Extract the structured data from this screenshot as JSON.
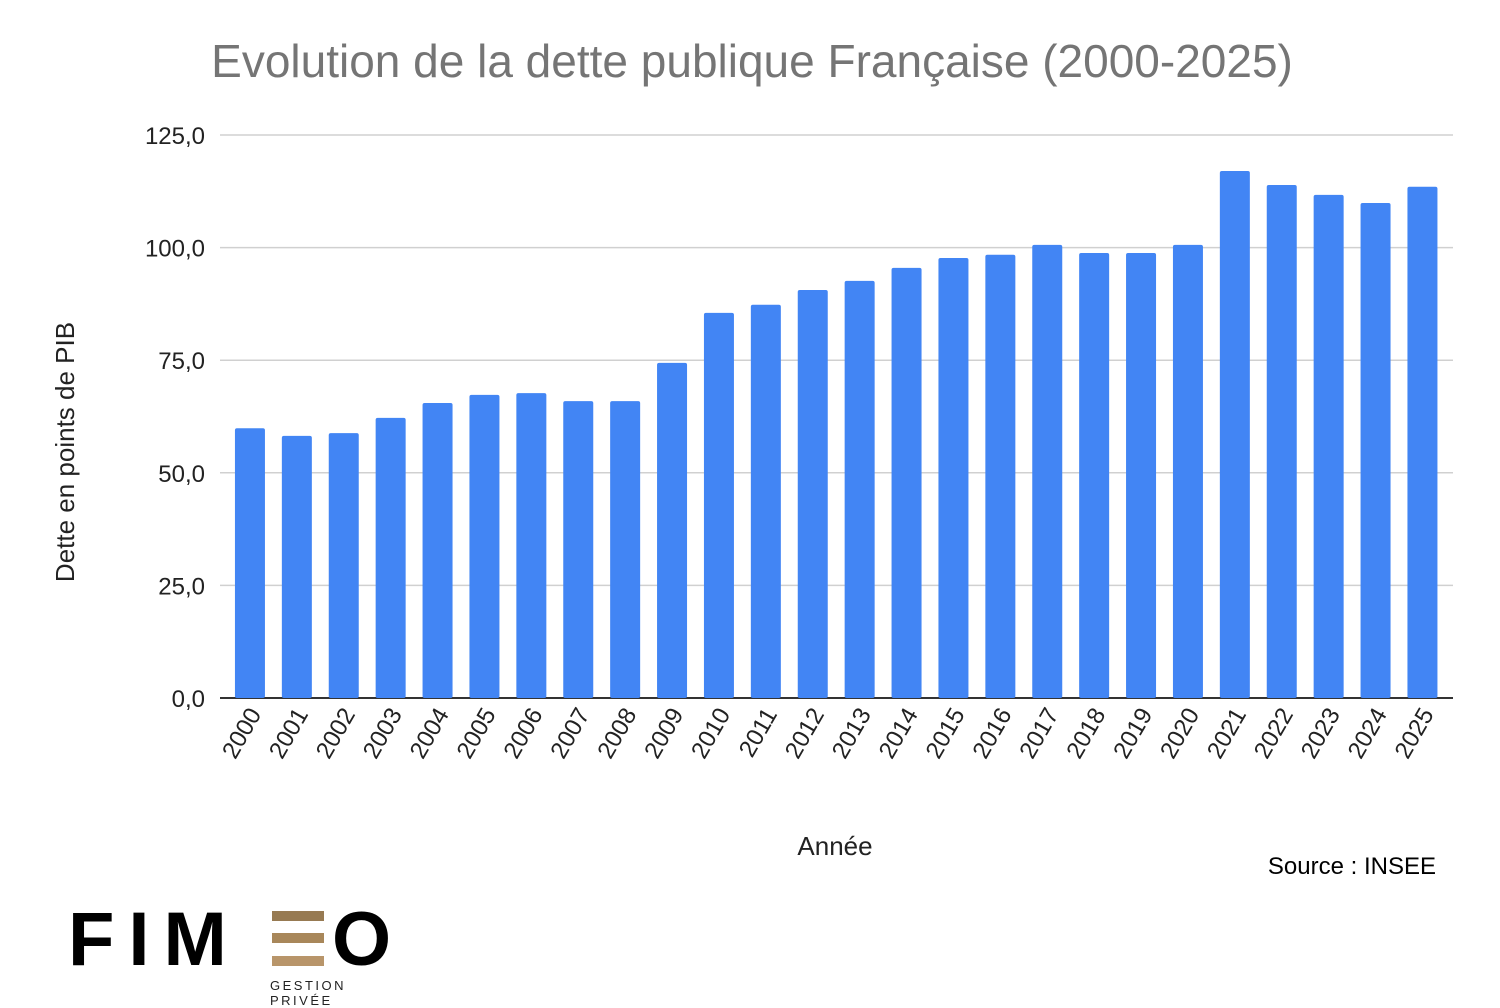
{
  "chart_data": {
    "type": "bar",
    "title": "Evolution de la dette publique Française (2000-2025)",
    "xlabel": "Année",
    "ylabel": "Dette en points de PIB",
    "ylim": [
      0,
      125
    ],
    "yticks": [
      "0,0",
      "25,0",
      "50,0",
      "75,0",
      "100,0",
      "125,0"
    ],
    "ytick_values": [
      0,
      25,
      50,
      75,
      100,
      125
    ],
    "grid": true,
    "categories": [
      "2000",
      "2001",
      "2002",
      "2003",
      "2004",
      "2005",
      "2006",
      "2007",
      "2008",
      "2009",
      "2010",
      "2011",
      "2012",
      "2013",
      "2014",
      "2015",
      "2016",
      "2017",
      "2018",
      "2019",
      "2020",
      "2021",
      "2022",
      "2023",
      "2024",
      "2025"
    ],
    "values": [
      59.9,
      58.2,
      58.8,
      62.2,
      65.5,
      67.3,
      67.7,
      65.9,
      65.9,
      74.4,
      85.5,
      87.3,
      90.6,
      92.6,
      95.5,
      97.7,
      98.4,
      100.6,
      98.8,
      98.8,
      100.6,
      117.0,
      113.9,
      111.7,
      109.9,
      113.5
    ],
    "bar_color": "#4285f4"
  },
  "source": "Source : INSEE",
  "logo": {
    "name": "FIMEO",
    "left": "FIM",
    "right": "O",
    "tagline": "GESTION PRIVÉE",
    "accent": "#a8875a"
  }
}
